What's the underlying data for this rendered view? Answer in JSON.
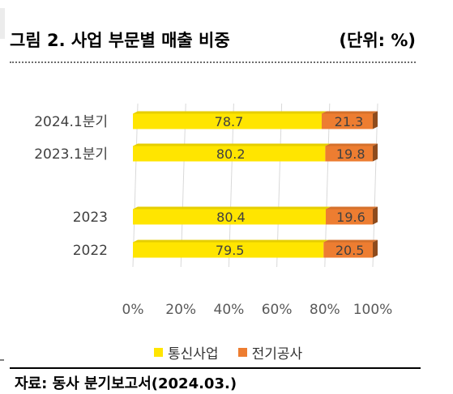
{
  "header": {
    "title": "그림 2. 사업 부문별 매출 비중",
    "unit": "(단위: %)"
  },
  "chart_data": {
    "type": "bar",
    "orientation": "horizontal",
    "stacked": true,
    "categories": [
      "2024.1분기",
      "2023.1분기",
      "2023",
      "2022"
    ],
    "series": [
      {
        "name": "통신사업",
        "values": [
          78.7,
          80.2,
          80.4,
          79.5
        ],
        "color": "#FFE500",
        "label_color": "#404040"
      },
      {
        "name": "전기공사",
        "values": [
          21.3,
          19.8,
          19.6,
          20.5
        ],
        "color": "#ED7D31",
        "label_color": "#404040"
      }
    ],
    "value_labels": [
      [
        "78.7",
        "80.2",
        "80.4",
        "79.5"
      ],
      [
        "21.3",
        "19.8",
        "19.6",
        "20.5"
      ]
    ],
    "xlim": [
      0,
      100
    ],
    "xticks": [
      "0%",
      "20%",
      "40%",
      "60%",
      "80%",
      "100%"
    ],
    "grid": true,
    "legend_position": "bottom",
    "category_gap_after_index": 1
  },
  "legend": {
    "items": [
      {
        "label": "통신사업",
        "color": "#FFE500"
      },
      {
        "label": "전기공사",
        "color": "#ED7D31"
      }
    ]
  },
  "source": {
    "text": "자료: 동사 분기보고서(2024.03.)"
  }
}
